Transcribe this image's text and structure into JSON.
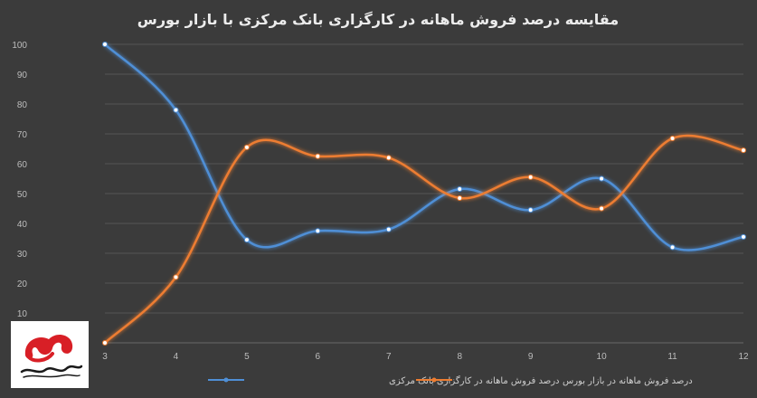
{
  "chart_data": {
    "type": "line",
    "title": "مقایسه درصد فروش ماهانه در کارگزاری بانک مرکزی با بازار بورس",
    "xlabel": "",
    "ylabel": "",
    "x": [
      3,
      4,
      5,
      6,
      7,
      8,
      9,
      10,
      11,
      12
    ],
    "ylim": [
      0,
      100
    ],
    "yticks": [
      10,
      20,
      30,
      40,
      50,
      60,
      70,
      80,
      90,
      100
    ],
    "grid": true,
    "legend_position": "bottom",
    "smooth": true,
    "series": [
      {
        "name": "درصد فروش ماهانه در کارگزاری بانک مرکزی",
        "color": "#4f8fd6",
        "values": [
          100,
          78,
          34.5,
          37.5,
          38,
          51.5,
          44.5,
          55,
          32,
          35.5
        ]
      },
      {
        "name": "درصد فروش ماهانه در بازار بورس",
        "color": "#ed7d31",
        "values": [
          0,
          22,
          65.5,
          62.5,
          62,
          48.5,
          55.5,
          45,
          68.5,
          64.5
        ]
      }
    ]
  },
  "logo": {
    "text": "خبرگزاری مهر",
    "color": "#d81f26"
  }
}
